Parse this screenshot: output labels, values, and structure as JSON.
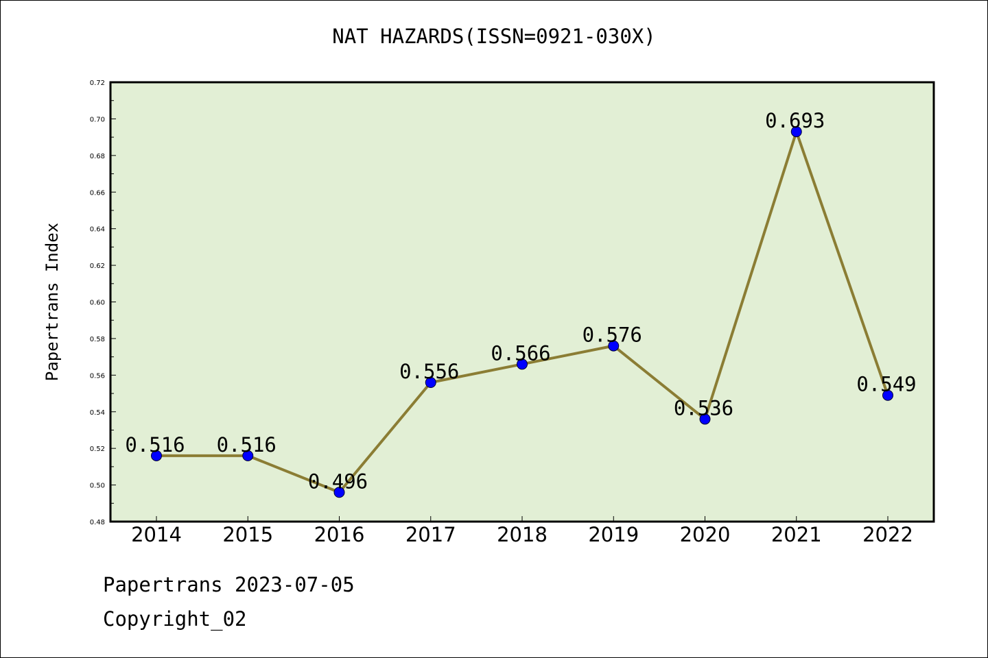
{
  "chart_data": {
    "type": "line",
    "title": "NAT HAZARDS(ISSN=0921-030X)",
    "xlabel": "",
    "ylabel": "Papertrans Index",
    "categories": [
      "2014",
      "2015",
      "2016",
      "2017",
      "2018",
      "2019",
      "2020",
      "2021",
      "2022"
    ],
    "series": [
      {
        "values": [
          0.516,
          0.516,
          0.496,
          0.556,
          0.566,
          0.576,
          0.536,
          0.693,
          0.549
        ],
        "labels": [
          "0.516",
          "0.516",
          "0.496",
          "0.556",
          "0.566",
          "0.576",
          "0.536",
          "0.693",
          "0.549"
        ]
      }
    ],
    "ylim": [
      0.48,
      0.72
    ],
    "yticks": [
      "0.48",
      "0.50",
      "0.52",
      "0.54",
      "0.56",
      "0.58",
      "0.60",
      "0.62",
      "0.64",
      "0.66",
      "0.68",
      "0.70",
      "0.72"
    ],
    "grid": false,
    "legend": "none",
    "colors": {
      "plot_background": "#e2efd5",
      "line": "#8b7d34",
      "marker": "#0000ff"
    }
  },
  "footer": {
    "date_line": "Papertrans 2023-07-05",
    "copyright": "Copyright_02"
  }
}
